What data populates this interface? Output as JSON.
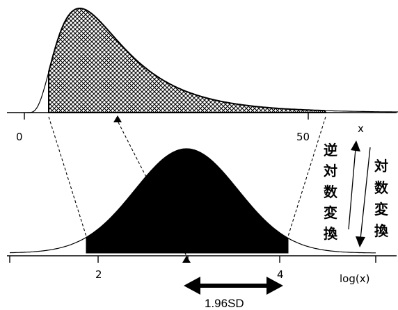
{
  "top_axis": {
    "tick_labels": [
      "0",
      "50"
    ],
    "variable_label": "x"
  },
  "bottom_axis": {
    "tick_labels": [
      "2",
      "4"
    ],
    "variable_label": "log(x)"
  },
  "annotations": {
    "inverse_log_transform": [
      "逆",
      "対",
      "数",
      "変",
      "換"
    ],
    "log_transform": [
      "対",
      "数",
      "変",
      "換"
    ],
    "interval_width": "1.96SD"
  },
  "colors": {
    "line": "#000000",
    "normal_fill": "#000000",
    "lognormal_fill": "crosshatch",
    "background": "#ffffff"
  }
}
